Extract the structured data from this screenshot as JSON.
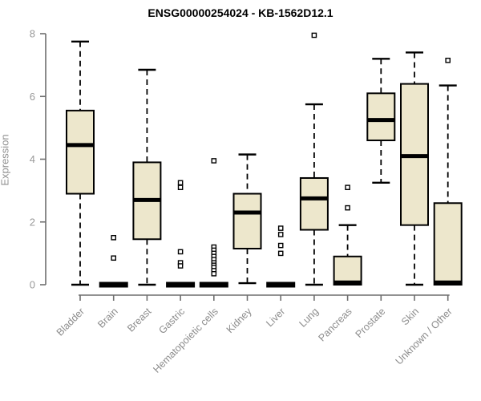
{
  "chart_data": {
    "type": "boxplot",
    "title": "ENSG00000254024 - KB-1562D12.1",
    "ylabel": "Expression",
    "xlabel": "",
    "ylim": [
      0,
      8
    ],
    "yticks": [
      0,
      2,
      4,
      6,
      8
    ],
    "categories": [
      "Bladder",
      "Brain",
      "Breast",
      "Gastric",
      "Hematopoietic cells",
      "Kidney",
      "Liver",
      "Lung",
      "Pancreas",
      "Prostate",
      "Skin",
      "Unknown / Other"
    ],
    "series": [
      {
        "category": "Bladder",
        "whisker_low": 0,
        "q1": 2.9,
        "median": 4.45,
        "q3": 5.55,
        "whisker_high": 7.75,
        "outliers": []
      },
      {
        "category": "Brain",
        "whisker_low": 0,
        "q1": 0,
        "median": 0,
        "q3": 0,
        "whisker_high": 0,
        "outliers": [
          1.5,
          0.85
        ]
      },
      {
        "category": "Breast",
        "whisker_low": 0,
        "q1": 1.45,
        "median": 2.7,
        "q3": 3.9,
        "whisker_high": 6.85,
        "outliers": []
      },
      {
        "category": "Gastric",
        "whisker_low": 0,
        "q1": 0,
        "median": 0,
        "q3": 0,
        "whisker_high": 0,
        "outliers": [
          3.25,
          3.1,
          1.05,
          0.7,
          0.6
        ]
      },
      {
        "category": "Hematopoietic cells",
        "whisker_low": 0,
        "q1": 0,
        "median": 0,
        "q3": 0,
        "whisker_high": 0,
        "outliers": [
          3.95,
          1.2,
          1.1,
          1.0,
          0.9,
          0.8,
          0.7,
          0.62,
          0.55,
          0.45,
          0.35
        ]
      },
      {
        "category": "Kidney",
        "whisker_low": 0.05,
        "q1": 1.15,
        "median": 2.3,
        "q3": 2.9,
        "whisker_high": 4.15,
        "outliers": []
      },
      {
        "category": "Liver",
        "whisker_low": 0,
        "q1": 0,
        "median": 0,
        "q3": 0,
        "whisker_high": 0,
        "outliers": [
          1.8,
          1.6,
          1.25,
          1.0
        ]
      },
      {
        "category": "Lung",
        "whisker_low": 0,
        "q1": 1.75,
        "median": 2.75,
        "q3": 3.4,
        "whisker_high": 5.75,
        "outliers": [
          7.95
        ]
      },
      {
        "category": "Pancreas",
        "whisker_low": 0,
        "q1": 0,
        "median": 0.07,
        "q3": 0.9,
        "whisker_high": 1.9,
        "outliers": [
          3.1,
          2.45
        ]
      },
      {
        "category": "Prostate",
        "whisker_low": 3.25,
        "q1": 4.6,
        "median": 5.25,
        "q3": 6.1,
        "whisker_high": 7.2,
        "outliers": []
      },
      {
        "category": "Skin",
        "whisker_low": 0,
        "q1": 1.9,
        "median": 4.1,
        "q3": 6.4,
        "whisker_high": 7.4,
        "outliers": []
      },
      {
        "category": "Unknown / Other",
        "whisker_low": 0,
        "q1": 0,
        "median": 0.07,
        "q3": 2.6,
        "whisker_high": 6.35,
        "outliers": [
          7.15
        ]
      }
    ],
    "layout": {
      "grid": false,
      "legend": false,
      "x_label_rotation_deg": 45
    },
    "colors": {
      "box_fill": "#EDE7CC",
      "box_border": "#000000",
      "median": "#000000",
      "whisker": "#000000",
      "outlier_border": "#000000",
      "axis_line": "#6e6e6e",
      "y_tick_label": "#999999",
      "x_tick_label": "#8c8c8c",
      "axis_title": "#8f8f8f",
      "title": "#000000",
      "background": "#ffffff"
    }
  }
}
